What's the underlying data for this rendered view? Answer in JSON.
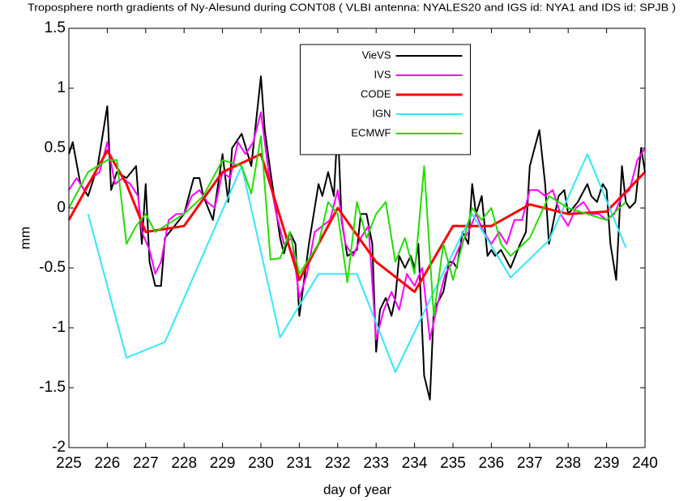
{
  "chart_data": {
    "type": "line",
    "title": "Troposphere north gradients of Ny-Alesund during CONT08 ( VLBI antenna: NYALES20 and IGS id: NYA1 and IDS id: SPJB )",
    "xlabel": "day of year",
    "ylabel": "mm",
    "xlim": [
      225,
      240
    ],
    "xticks": [
      225,
      226,
      227,
      228,
      229,
      230,
      231,
      232,
      233,
      234,
      235,
      236,
      237,
      238,
      239,
      240
    ],
    "ylim": [
      -2,
      1.5
    ],
    "yticks": [
      -2,
      -1.5,
      -1,
      -0.5,
      0,
      0.5,
      1,
      1.5
    ],
    "grid": false,
    "legend": "top",
    "series": [
      {
        "name": "VieVS",
        "color": "#000000",
        "x": [
          225,
          225.1,
          225.3,
          225.5,
          225.75,
          226,
          226.1,
          226.25,
          226.5,
          226.75,
          226.9,
          227,
          227.1,
          227.25,
          227.4,
          227.5,
          227.75,
          228,
          228.25,
          228.4,
          228.5,
          228.75,
          229,
          229.15,
          229.25,
          229.5,
          229.75,
          230,
          230.1,
          230.25,
          230.5,
          230.6,
          230.75,
          230.9,
          231,
          231.25,
          231.5,
          231.6,
          231.75,
          231.9,
          232,
          232.1,
          232.25,
          232.5,
          232.6,
          232.75,
          232.9,
          233,
          233.1,
          233.25,
          233.4,
          233.5,
          233.6,
          233.75,
          233.9,
          234,
          234.1,
          234.25,
          234.4,
          234.5,
          234.75,
          234.9,
          235,
          235.1,
          235.25,
          235.4,
          235.5,
          235.6,
          235.75,
          235.9,
          236,
          236.1,
          236.25,
          236.5,
          236.75,
          236.9,
          237,
          237.25,
          237.4,
          237.5,
          237.75,
          237.9,
          238,
          238.25,
          238.5,
          238.6,
          238.75,
          238.9,
          239,
          239.1,
          239.25,
          239.4,
          239.5,
          239.6,
          239.75,
          239.9,
          240
        ],
        "values": [
          0.45,
          0.55,
          0.2,
          0.1,
          0.35,
          0.85,
          0.15,
          0.3,
          0.25,
          0.35,
          -0.3,
          0.2,
          -0.45,
          -0.65,
          -0.65,
          -0.25,
          -0.15,
          -0.05,
          0.25,
          0.25,
          0.1,
          -0.1,
          0.45,
          0.05,
          0.5,
          0.62,
          0.35,
          1.1,
          0.65,
          0.3,
          -0.25,
          -0.38,
          -0.2,
          -0.3,
          -0.9,
          -0.3,
          0.2,
          0.1,
          0.3,
          0.1,
          0.7,
          -0.1,
          -0.4,
          -0.35,
          -0.05,
          -0.05,
          -0.3,
          -1.2,
          -0.85,
          -0.75,
          -0.9,
          -0.75,
          -0.4,
          -0.5,
          -0.4,
          -0.5,
          -0.3,
          -1.4,
          -1.6,
          -0.85,
          -0.7,
          -0.45,
          -0.45,
          -0.5,
          -0.2,
          -0.3,
          0.2,
          -0.05,
          0.1,
          -0.4,
          -0.35,
          -0.4,
          -0.35,
          -0.5,
          -0.3,
          -0.2,
          0.35,
          0.65,
          0.2,
          -0.3,
          0.1,
          0.15,
          -0.05,
          0.05,
          0.2,
          0.1,
          0.05,
          0.2,
          0.15,
          -0.3,
          -0.6,
          0.35,
          0.05,
          0.0,
          0.05,
          0.5,
          0.3
        ]
      },
      {
        "name": "IVS",
        "color": "#ff00ff",
        "x": [
          225,
          225.2,
          225.4,
          225.6,
          225.8,
          226,
          226.2,
          226.4,
          226.6,
          226.8,
          226.9,
          227.1,
          227.25,
          227.4,
          227.6,
          227.8,
          228,
          228.2,
          228.4,
          228.6,
          228.8,
          229,
          229.2,
          229.4,
          229.6,
          229.8,
          230,
          230.2,
          230.4,
          230.6,
          230.8,
          231,
          231.2,
          231.4,
          231.6,
          231.8,
          232,
          232.2,
          232.4,
          232.6,
          232.8,
          233,
          233.2,
          233.4,
          233.6,
          233.8,
          234,
          234.2,
          234.4,
          234.6,
          234.8,
          235,
          235.2,
          235.4,
          235.6,
          235.8,
          236,
          236.2,
          236.4,
          236.6,
          236.8,
          237,
          237.2,
          237.4,
          237.6,
          237.8,
          238,
          238.2,
          238.4,
          238.6,
          238.8,
          239,
          239.2,
          239.4,
          239.6,
          239.8,
          240
        ],
        "values": [
          0.15,
          0.25,
          0.15,
          0.25,
          0.3,
          0.55,
          0.2,
          0.25,
          0.2,
          0.1,
          -0.2,
          -0.35,
          -0.55,
          -0.45,
          -0.1,
          -0.05,
          -0.05,
          0.1,
          0.15,
          0.05,
          0.0,
          0.3,
          0.25,
          0.55,
          0.45,
          0.55,
          0.8,
          0.3,
          -0.05,
          -0.3,
          -0.25,
          -0.75,
          -0.55,
          -0.2,
          -0.15,
          -0.1,
          0.15,
          -0.3,
          -0.4,
          -0.25,
          -0.15,
          -1.1,
          -0.85,
          -0.7,
          -0.85,
          -0.55,
          -0.65,
          -0.5,
          -1.1,
          -0.8,
          -0.55,
          -0.45,
          -0.3,
          -0.2,
          -0.05,
          -0.2,
          -0.3,
          -0.2,
          -0.3,
          -0.1,
          -0.1,
          0.15,
          0.15,
          0.1,
          0.15,
          -0.05,
          -0.15,
          0.0,
          0.05,
          -0.05,
          -0.05,
          -0.1,
          -0.05,
          0.1,
          0.15,
          0.4,
          0.5
        ]
      },
      {
        "name": "CODE",
        "color": "#ff0000",
        "x": [
          225,
          226,
          226.5,
          227,
          228,
          229,
          230,
          231,
          232,
          233,
          234,
          235,
          236,
          237,
          238,
          239,
          240
        ],
        "values": [
          -0.1,
          0.48,
          0.2,
          -0.2,
          -0.15,
          0.3,
          0.45,
          -0.6,
          0,
          -0.45,
          -0.7,
          -0.15,
          -0.15,
          0.03,
          -0.05,
          -0.03,
          0.3
        ]
      },
      {
        "name": "IGN",
        "color": "#33e6ff",
        "x": [
          225.5,
          226.5,
          227.5,
          229.5,
          230.5,
          231.5,
          232.5,
          233.5,
          234.5,
          235.5,
          236.5,
          237.5,
          238.5,
          239.5
        ],
        "values": [
          -0.05,
          -1.25,
          -1.12,
          0.35,
          -1.08,
          -0.55,
          -0.55,
          -1.37,
          -0.7,
          -0.05,
          -0.58,
          -0.27,
          0.45,
          -0.33
        ]
      },
      {
        "name": "ECMWF",
        "color": "#22dd00",
        "x": [
          225,
          225.5,
          226,
          226.25,
          226.5,
          226.75,
          227,
          227.25,
          227.5,
          228,
          228.5,
          229,
          229.5,
          229.75,
          230,
          230.25,
          230.5,
          230.75,
          231,
          231.5,
          231.75,
          232,
          232.25,
          232.5,
          232.75,
          233,
          233.25,
          233.5,
          233.75,
          234,
          234.25,
          234.5,
          234.75,
          235,
          235.5,
          235.75,
          236,
          236.25,
          236.5,
          237,
          237.5,
          238,
          238.5,
          239,
          239.5
        ],
        "values": [
          0,
          0.3,
          0.4,
          0.4,
          -0.3,
          -0.15,
          -0.05,
          -0.2,
          -0.15,
          -0.05,
          0.1,
          0.4,
          0.35,
          0.12,
          0.6,
          -0.43,
          -0.42,
          -0.2,
          -0.55,
          -0.3,
          0.05,
          -0.05,
          -0.62,
          0.05,
          -0.25,
          -0.05,
          0.05,
          -0.45,
          -0.25,
          -0.55,
          0.35,
          -0.9,
          -0.3,
          -0.6,
          0.0,
          -0.1,
          0.0,
          -0.3,
          -0.4,
          -0.25,
          0.1,
          0.0,
          -0.05,
          -0.1,
          0.05
        ]
      }
    ]
  }
}
